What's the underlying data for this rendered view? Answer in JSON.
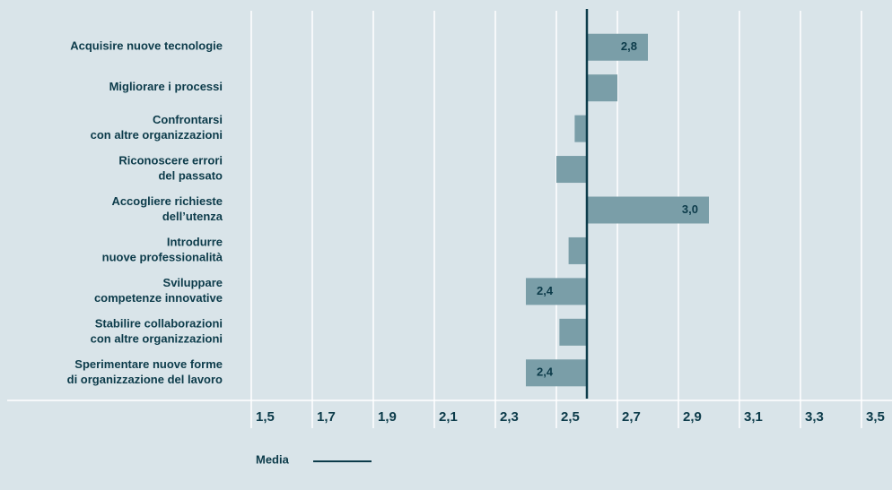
{
  "chart_data": {
    "type": "bar",
    "orientation": "horizontal",
    "categories": [
      [
        "Acquisire nuove tecnologie"
      ],
      [
        "Migliorare i processi"
      ],
      [
        "Confrontarsi",
        "con altre organizzazioni"
      ],
      [
        "Riconoscere errori",
        "del passato"
      ],
      [
        "Accogliere richieste",
        "dell’utenza"
      ],
      [
        "Introdurre",
        "nuove professionalità"
      ],
      [
        "Sviluppare",
        "competenze innovative"
      ],
      [
        "Stabilire collaborazioni",
        "con altre organizzazioni"
      ],
      [
        "Sperimentare nuove forme",
        "di organizzazione del lavoro"
      ]
    ],
    "values": [
      2.8,
      2.7,
      2.56,
      2.5,
      3.0,
      2.54,
      2.4,
      2.51,
      2.4
    ],
    "value_labels": [
      "2,8",
      null,
      null,
      null,
      "3,0",
      null,
      "2,4",
      null,
      "2,4"
    ],
    "color": "#7a9ea8",
    "reference_line": {
      "name": "Media",
      "value": 2.6,
      "color": "#0c3b4a"
    },
    "xlim": [
      1.5,
      3.5
    ],
    "xticks": [
      {
        "value": 1.5,
        "label": "1,5"
      },
      {
        "value": 1.7,
        "label": "1,7"
      },
      {
        "value": 1.9,
        "label": "1,9"
      },
      {
        "value": 2.1,
        "label": "2,1"
      },
      {
        "value": 2.3,
        "label": "2,3"
      },
      {
        "value": 2.5,
        "label": "2,5"
      },
      {
        "value": 2.7,
        "label": "2,7"
      },
      {
        "value": 2.9,
        "label": "2,9"
      },
      {
        "value": 3.1,
        "label": "3,1"
      },
      {
        "value": 3.3,
        "label": "3,3"
      },
      {
        "value": 3.5,
        "label": "3,5"
      }
    ],
    "grid": true
  }
}
